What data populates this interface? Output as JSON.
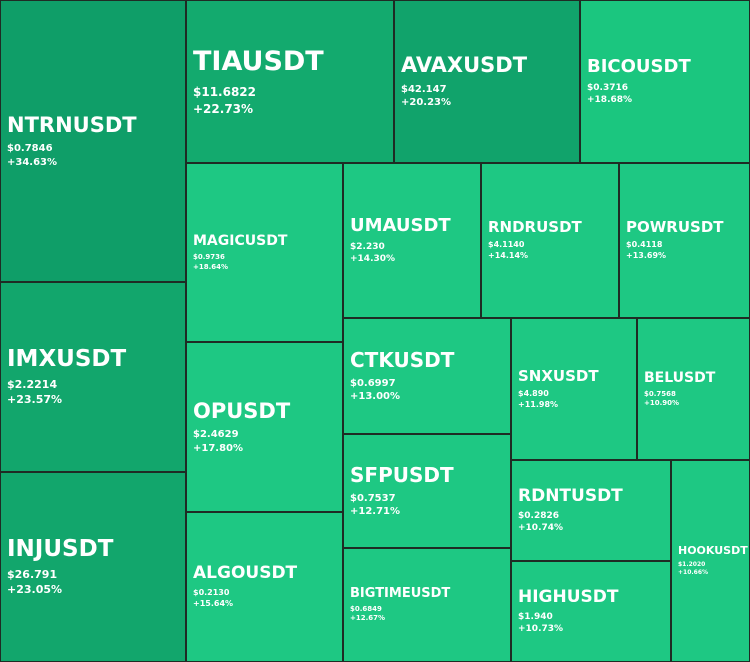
{
  "chart_data": {
    "type": "treemap",
    "title": "",
    "items": [
      {
        "symbol": "NTRNUSDT",
        "price": "$0.7846",
        "change": "+34.63%",
        "value": 34.63,
        "color": "#0f9e68"
      },
      {
        "symbol": "IMXUSDT",
        "price": "$2.2214",
        "change": "+23.57%",
        "value": 23.57,
        "color": "#12a66c"
      },
      {
        "symbol": "INJUSDT",
        "price": "$26.791",
        "change": "+23.05%",
        "value": 23.05,
        "color": "#12a66c"
      },
      {
        "symbol": "TIAUSDT",
        "price": "$11.6822",
        "change": "+22.73%",
        "value": 22.73,
        "color": "#13aa6e"
      },
      {
        "symbol": "AVAXUSDT",
        "price": "$42.147",
        "change": "+20.23%",
        "value": 20.23,
        "color": "#11a36b"
      },
      {
        "symbol": "BICOUSDT",
        "price": "$0.3716",
        "change": "+18.68%",
        "value": 18.68,
        "color": "#1bc67f"
      },
      {
        "symbol": "MAGICUSDT",
        "price": "$0.9736",
        "change": "+18.64%",
        "value": 18.64,
        "color": "#1ec883"
      },
      {
        "symbol": "UMAUSDT",
        "price": "$2.230",
        "change": "+14.30%",
        "value": 14.3,
        "color": "#1ec883"
      },
      {
        "symbol": "RNDRUSDT",
        "price": "$4.1140",
        "change": "+14.14%",
        "value": 14.14,
        "color": "#1ec883"
      },
      {
        "symbol": "POWRUSDT",
        "price": "$0.4118",
        "change": "+13.69%",
        "value": 13.69,
        "color": "#1ec883"
      },
      {
        "symbol": "OPUSDT",
        "price": "$2.4629",
        "change": "+17.80%",
        "value": 17.8,
        "color": "#1ec883"
      },
      {
        "symbol": "CTKUSDT",
        "price": "$0.6997",
        "change": "+13.00%",
        "value": 13.0,
        "color": "#1ec883"
      },
      {
        "symbol": "SNXUSDT",
        "price": "$4.890",
        "change": "+11.98%",
        "value": 11.98,
        "color": "#1ec883"
      },
      {
        "symbol": "BELUSDT",
        "price": "$0.7568",
        "change": "+10.90%",
        "value": 10.9,
        "color": "#1ec883"
      },
      {
        "symbol": "SFPUSDT",
        "price": "$0.7537",
        "change": "+12.71%",
        "value": 12.71,
        "color": "#1ec883"
      },
      {
        "symbol": "RDNTUSDT",
        "price": "$0.2826",
        "change": "+10.74%",
        "value": 10.74,
        "color": "#1ec883"
      },
      {
        "symbol": "ALGOUSDT",
        "price": "$0.2130",
        "change": "+15.64%",
        "value": 15.64,
        "color": "#1ec883"
      },
      {
        "symbol": "BIGTIMEUSDT",
        "price": "$0.6849",
        "change": "+12.67%",
        "value": 12.67,
        "color": "#1ec883"
      },
      {
        "symbol": "HIGHUSDT",
        "price": "$1.940",
        "change": "+10.73%",
        "value": 10.73,
        "color": "#1ec883"
      },
      {
        "symbol": "HOOKUSDT",
        "price": "$1.2020",
        "change": "+10.66%",
        "value": 10.66,
        "color": "#1ec883"
      }
    ]
  }
}
